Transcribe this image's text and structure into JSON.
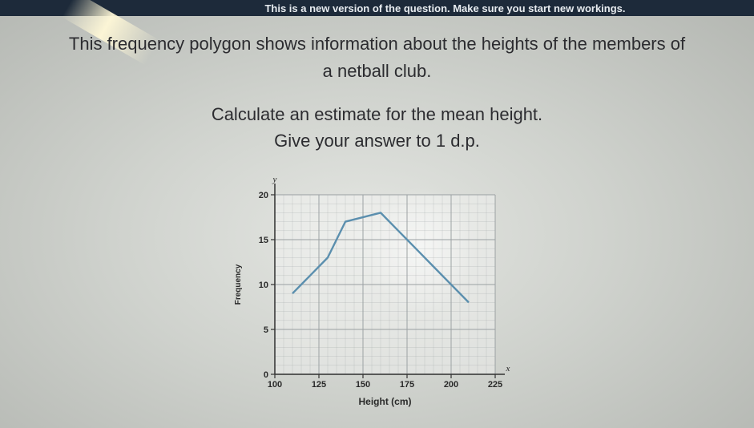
{
  "banner_text": "This is a new version of the question. Make sure you start new workings.",
  "question": {
    "line1": "This frequency polygon shows information about the heights of the members of",
    "line2": "a netball club.",
    "line3": "Calculate an estimate for the mean height.",
    "line4": "Give your answer to 1 d.p."
  },
  "colors": {
    "banner_bg": "#1d2a3a",
    "line": "#5b8fae",
    "grid": "#9aa0a2"
  },
  "chart_data": {
    "type": "line",
    "xlabel": "Height (cm)",
    "ylabel": "Frequency",
    "x_axis_symbol": "x",
    "y_axis_symbol": "y",
    "xlim": [
      100,
      225
    ],
    "ylim": [
      0,
      20
    ],
    "x_ticks": [
      "100",
      "125",
      "150",
      "175",
      "200",
      "225"
    ],
    "y_ticks": [
      "0",
      "5",
      "10",
      "15",
      "20"
    ],
    "grid": true,
    "series": [
      {
        "x": [
          110,
          120,
          130,
          140,
          160,
          170,
          180,
          190,
          200,
          210
        ],
        "y": [
          9,
          11,
          13,
          17,
          18,
          16,
          14,
          12,
          10,
          8
        ]
      }
    ]
  }
}
